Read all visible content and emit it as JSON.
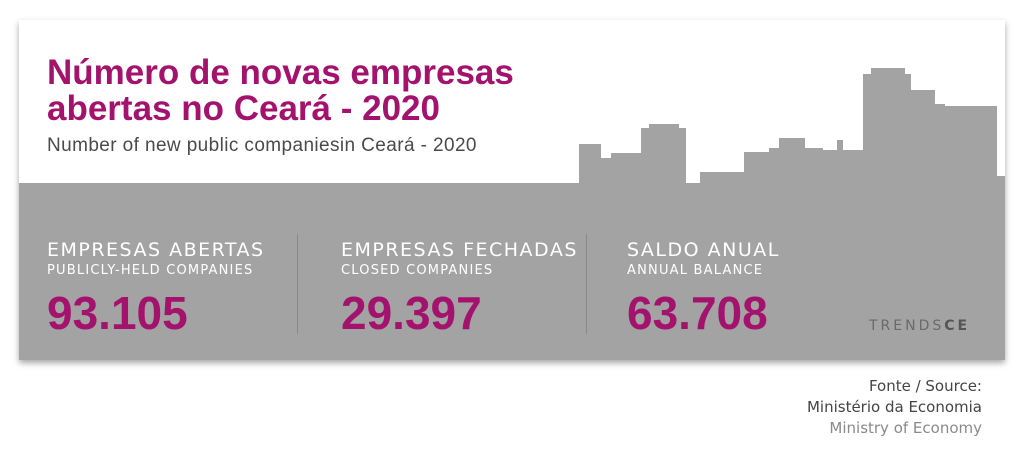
{
  "header": {
    "title_line1": "Número de novas empresas",
    "title_line2": "abertas no Ceará - 2020",
    "subtitle": "Number of new public companiesin Ceará - 2020"
  },
  "stats": [
    {
      "label": "EMPRESAS ABERTAS",
      "sublabel": "PUBLICLY-HELD COMPANIES",
      "value": "93.105"
    },
    {
      "label": "EMPRESAS FECHADAS",
      "sublabel": "CLOSED COMPANIES",
      "value": "29.397"
    },
    {
      "label": "SALDO ANUAL",
      "sublabel": "ANNUAL BALANCE",
      "value": "63.708"
    }
  ],
  "logo": {
    "part1": "TRENDS",
    "part2": "CE"
  },
  "source": {
    "line1": "Fonte / Source:",
    "line2": "Ministério da Economia",
    "line3": "Ministry of Economy"
  },
  "colors": {
    "accent": "#a3136e",
    "band": "#a3a3a3",
    "skyline": "#a3a3a3",
    "background": "#ffffff"
  }
}
